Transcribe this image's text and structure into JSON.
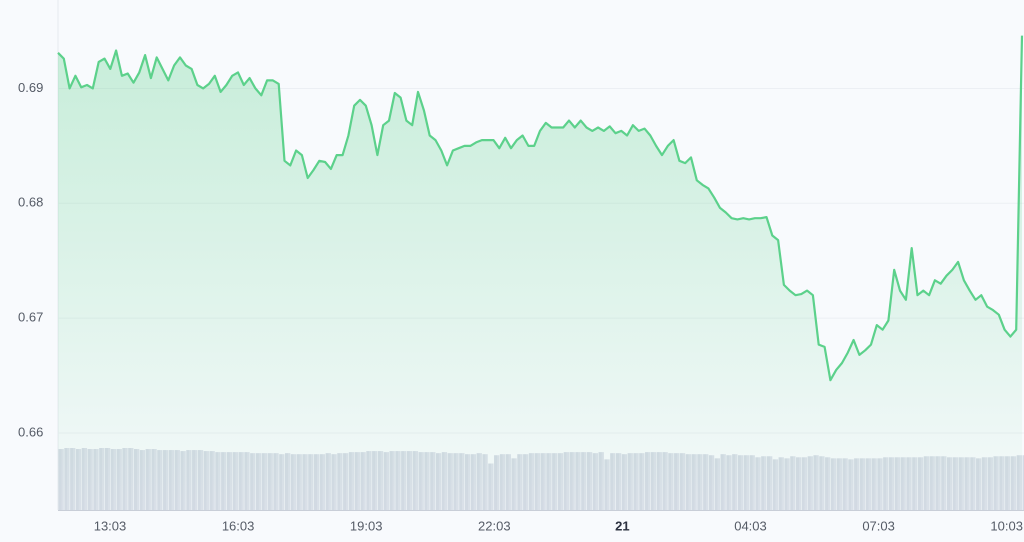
{
  "chart_data": {
    "type": "line",
    "ylim": [
      0.6533,
      0.6977
    ],
    "yticks": [
      0.66,
      0.67,
      0.68,
      0.69
    ],
    "grid": true,
    "x_tick_labels": [
      "13:03",
      "16:03",
      "19:03",
      "22:03",
      "21",
      "04:03",
      "07:03",
      "10:03"
    ],
    "series": [
      {
        "color": "#5cd18b",
        "values": [
          0.6931,
          0.6926,
          0.69,
          0.6911,
          0.6901,
          0.6903,
          0.69,
          0.6923,
          0.6926,
          0.6917,
          0.6933,
          0.6911,
          0.6913,
          0.6905,
          0.6914,
          0.6929,
          0.6909,
          0.6927,
          0.6917,
          0.6907,
          0.692,
          0.6927,
          0.692,
          0.6917,
          0.6903,
          0.69,
          0.6904,
          0.6911,
          0.6897,
          0.6903,
          0.6911,
          0.6914,
          0.6903,
          0.6909,
          0.69,
          0.6894,
          0.6907,
          0.6907,
          0.6904,
          0.6837,
          0.6833,
          0.6846,
          0.6842,
          0.6822,
          0.6829,
          0.6837,
          0.6836,
          0.683,
          0.6842,
          0.6842,
          0.6859,
          0.6885,
          0.689,
          0.6885,
          0.6868,
          0.6842,
          0.6868,
          0.6872,
          0.6896,
          0.6892,
          0.6872,
          0.6868,
          0.6897,
          0.6881,
          0.6859,
          0.6855,
          0.6846,
          0.6833,
          0.6846,
          0.6848,
          0.685,
          0.685,
          0.6853,
          0.6855,
          0.6855,
          0.6855,
          0.6848,
          0.6857,
          0.6848,
          0.6855,
          0.6859,
          0.685,
          0.685,
          0.6863,
          0.687,
          0.6866,
          0.6866,
          0.6866,
          0.6872,
          0.6866,
          0.6872,
          0.6866,
          0.6863,
          0.6866,
          0.6863,
          0.6867,
          0.6861,
          0.6863,
          0.6859,
          0.6868,
          0.6863,
          0.6865,
          0.6859,
          0.685,
          0.6842,
          0.685,
          0.6855,
          0.6837,
          0.6835,
          0.684,
          0.682,
          0.6816,
          0.6813,
          0.6805,
          0.6796,
          0.6792,
          0.6787,
          0.6786,
          0.6787,
          0.6786,
          0.6787,
          0.6787,
          0.6788,
          0.6772,
          0.6768,
          0.6729,
          0.6724,
          0.672,
          0.6721,
          0.6724,
          0.672,
          0.6677,
          0.6675,
          0.6646,
          0.6655,
          0.6661,
          0.667,
          0.6681,
          0.6668,
          0.6672,
          0.6677,
          0.6694,
          0.669,
          0.6698,
          0.6742,
          0.6724,
          0.6716,
          0.6761,
          0.672,
          0.6724,
          0.672,
          0.6733,
          0.673,
          0.6737,
          0.6742,
          0.6749,
          0.6733,
          0.6724,
          0.6716,
          0.672,
          0.671,
          0.6707,
          0.6703,
          0.669,
          0.6684,
          0.669,
          0.6946
        ]
      }
    ],
    "volume": {
      "color": "#d5dae5",
      "values": [
        59,
        60,
        60,
        59,
        60,
        59,
        59,
        60,
        60,
        59,
        59,
        60,
        60,
        59,
        58,
        59,
        59,
        58,
        58,
        58,
        58,
        57,
        58,
        58,
        58,
        57,
        57,
        56,
        56,
        56,
        56,
        56,
        56,
        55,
        55,
        55,
        55,
        55,
        54,
        55,
        54,
        54,
        54,
        54,
        54,
        54,
        55,
        54,
        55,
        55,
        56,
        56,
        56,
        57,
        57,
        57,
        56,
        57,
        57,
        57,
        57,
        57,
        56,
        56,
        56,
        55,
        56,
        55,
        55,
        55,
        54,
        54,
        55,
        54,
        45,
        53,
        54,
        54,
        50,
        54,
        54,
        55,
        55,
        55,
        55,
        55,
        55,
        56,
        56,
        56,
        56,
        56,
        55,
        56,
        49,
        55,
        55,
        54,
        55,
        55,
        55,
        56,
        56,
        56,
        56,
        55,
        55,
        55,
        54,
        54,
        54,
        54,
        53,
        50,
        54,
        53,
        54,
        53,
        53,
        53,
        51,
        52,
        52,
        49,
        51,
        50,
        52,
        51,
        51,
        52,
        53,
        52,
        51,
        50,
        50,
        50,
        49,
        50,
        50,
        50,
        50,
        50,
        51,
        51,
        51,
        51,
        51,
        51,
        51,
        52,
        52,
        52,
        52,
        51,
        51,
        51,
        51,
        51,
        50,
        51,
        51,
        52,
        52,
        52,
        52,
        53,
        53
      ]
    }
  }
}
